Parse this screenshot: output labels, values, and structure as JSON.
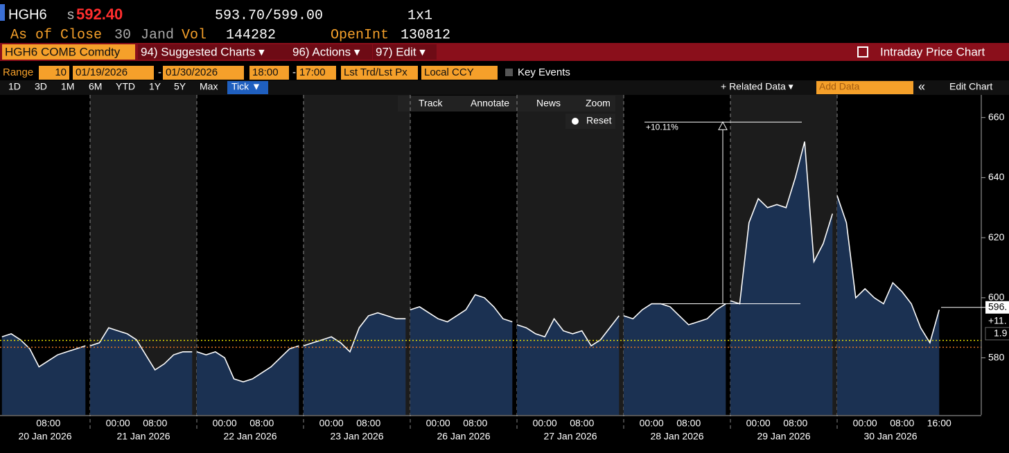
{
  "header": {
    "ticker": "HGH6",
    "price_prefix": "s",
    "price": "592.40",
    "bid_ask": "593.70/599.00",
    "size": "1x1",
    "close_label": "As of Close",
    "close_day": "30",
    "close_month": "Jand",
    "volume_label": "Vol",
    "volume": "144282",
    "open_interest_label": "OpenInt",
    "open_interest": "130812"
  },
  "menu": {
    "security": "HGH6 COMB Comdty",
    "items": [
      "94) Suggested Charts ▾",
      "96) Actions ▾",
      "97) Edit ▾"
    ],
    "title": "Intraday Price Chart"
  },
  "range": {
    "label": "Range",
    "count": "10",
    "start_date": "01/19/2026",
    "separator": "-",
    "end_date": "01/30/2026",
    "start_time": "18:00",
    "end_time": "17:00",
    "price_field": "Lst Trd/Lst Px",
    "currency": "Local CCY",
    "events": "Key Events"
  },
  "periods": {
    "items": [
      "1D",
      "3D",
      "1M",
      "6M",
      "YTD",
      "1Y",
      "5Y",
      "Max",
      "Tick ▼"
    ],
    "selected": 8
  },
  "toolbar": {
    "related": "+ Related Data ▾",
    "add_data": "Add Data",
    "collapse": "«",
    "edit": "Edit Chart"
  },
  "chart_tools": {
    "items": [
      "Track",
      "Annotate",
      "News",
      "Zoom"
    ],
    "reset": "Reset"
  },
  "chart_data": {
    "type": "area",
    "color": "#ffffff",
    "fill": "#1b3152",
    "ylim": [
      561,
      668
    ],
    "yticks": [
      580,
      600,
      620,
      640,
      660
    ],
    "sessions": [
      {
        "date": "20 Jan 2026",
        "times": [
          "08:00"
        ],
        "values": [
          587,
          588,
          586,
          583,
          577,
          579,
          581,
          582,
          583,
          584
        ]
      },
      {
        "date": "21 Jan 2026",
        "times": [
          "00:00",
          "08:00"
        ],
        "values": [
          584,
          585,
          590,
          589,
          588,
          586,
          581,
          576,
          578,
          581,
          582,
          582
        ]
      },
      {
        "date": "22 Jan 2026",
        "times": [
          "00:00",
          "08:00"
        ],
        "values": [
          582,
          581,
          582,
          580,
          573,
          572,
          573,
          575,
          577,
          580,
          583,
          584
        ]
      },
      {
        "date": "23 Jan 2026",
        "times": [
          "00:00",
          "08:00"
        ],
        "values": [
          584,
          585,
          586,
          587,
          585,
          582,
          590,
          594,
          595,
          594,
          593,
          593
        ]
      },
      {
        "date": "26 Jan 2026",
        "times": [
          "00:00",
          "08:00"
        ],
        "values": [
          596,
          597,
          595,
          593,
          592,
          594,
          596,
          601,
          600,
          597,
          593,
          592
        ]
      },
      {
        "date": "27 Jan 2026",
        "times": [
          "00:00",
          "08:00"
        ],
        "values": [
          591,
          590,
          588,
          587,
          593,
          589,
          588,
          589,
          584,
          586,
          590,
          594
        ]
      },
      {
        "date": "28 Jan 2026",
        "times": [
          "00:00",
          "08:00"
        ],
        "values": [
          594,
          593,
          596,
          598,
          598,
          597,
          594,
          591,
          592,
          593,
          596,
          598
        ]
      },
      {
        "date": "29 Jan 2026",
        "times": [
          "00:00",
          "08:00"
        ],
        "values": [
          599,
          598,
          625,
          633,
          630,
          631,
          630,
          640,
          652,
          612,
          618,
          628
        ]
      },
      {
        "date": "30 Jan 2026",
        "times": [
          "00:00",
          "08:00",
          "16:00"
        ],
        "values": [
          634,
          625,
          600,
          603,
          600,
          598,
          605,
          602,
          598,
          590,
          585,
          596
        ]
      }
    ],
    "reference_lines": [
      {
        "color": "#e8e000",
        "value": 585.8
      },
      {
        "color": "#e07020",
        "value": 583.5
      }
    ],
    "last_value": 596.8,
    "last_labels": [
      "596.",
      "+11.",
      "1.9"
    ],
    "measure": {
      "label": "+10.11%",
      "start": 598,
      "end": 658.5
    }
  }
}
